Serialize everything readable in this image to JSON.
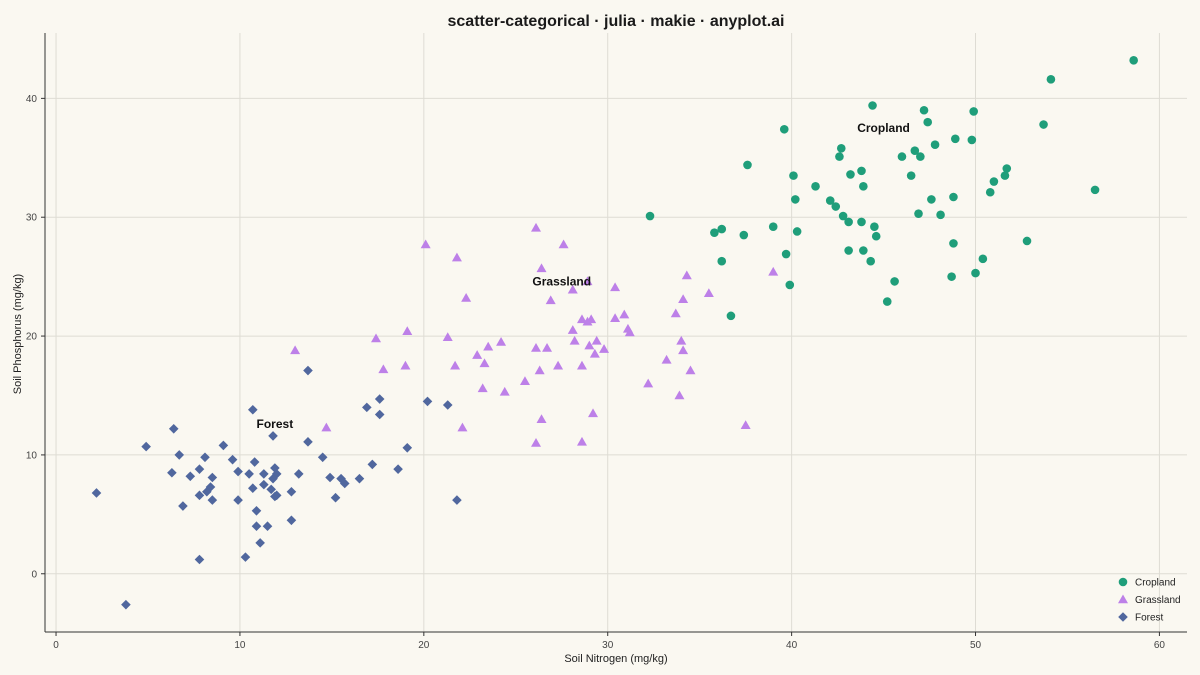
{
  "chart_data": {
    "type": "scatter",
    "title": "scatter-categorical · julia · makie · anyplot.ai",
    "xlabel": "Soil Nitrogen (mg/kg)",
    "ylabel": "Soil Phosphorus (mg/kg)",
    "xlim": [
      -0.6,
      61.5
    ],
    "ylim": [
      -4.9,
      45.5
    ],
    "xticks": [
      0,
      10,
      20,
      30,
      40,
      50,
      60
    ],
    "yticks": [
      0,
      10,
      20,
      30,
      40
    ],
    "grid": true,
    "legend_position": "bottom-right",
    "series": [
      {
        "name": "Cropland",
        "color": "#1F9E7A",
        "marker": "circle",
        "label": "Cropland",
        "label_at": [
          45,
          37.5
        ],
        "points": [
          [
            58.6,
            43.2
          ],
          [
            54.1,
            41.6
          ],
          [
            44.4,
            39.4
          ],
          [
            47.2,
            39.0
          ],
          [
            49.9,
            38.9
          ],
          [
            47.4,
            38.0
          ],
          [
            53.7,
            37.8
          ],
          [
            39.6,
            37.4
          ],
          [
            48.9,
            36.6
          ],
          [
            49.8,
            36.5
          ],
          [
            47.8,
            36.1
          ],
          [
            42.7,
            35.8
          ],
          [
            42.6,
            35.1
          ],
          [
            46.7,
            35.6
          ],
          [
            47.0,
            35.1
          ],
          [
            46.0,
            35.1
          ],
          [
            37.6,
            34.4
          ],
          [
            51.7,
            34.1
          ],
          [
            43.8,
            33.9
          ],
          [
            43.2,
            33.6
          ],
          [
            46.5,
            33.5
          ],
          [
            51.6,
            33.5
          ],
          [
            40.1,
            33.5
          ],
          [
            51.0,
            33.0
          ],
          [
            41.3,
            32.6
          ],
          [
            43.9,
            32.6
          ],
          [
            56.5,
            32.3
          ],
          [
            50.8,
            32.1
          ],
          [
            40.2,
            31.5
          ],
          [
            42.1,
            31.4
          ],
          [
            47.6,
            31.5
          ],
          [
            48.8,
            31.7
          ],
          [
            42.4,
            30.9
          ],
          [
            32.3,
            30.1
          ],
          [
            42.8,
            30.1
          ],
          [
            46.9,
            30.3
          ],
          [
            48.1,
            30.2
          ],
          [
            43.8,
            29.6
          ],
          [
            43.1,
            29.6
          ],
          [
            44.5,
            29.2
          ],
          [
            39.0,
            29.2
          ],
          [
            36.2,
            29.0
          ],
          [
            40.3,
            28.8
          ],
          [
            35.8,
            28.7
          ],
          [
            44.6,
            28.4
          ],
          [
            37.4,
            28.5
          ],
          [
            52.8,
            28.0
          ],
          [
            48.8,
            27.8
          ],
          [
            43.1,
            27.2
          ],
          [
            43.9,
            27.2
          ],
          [
            39.7,
            26.9
          ],
          [
            50.4,
            26.5
          ],
          [
            36.2,
            26.3
          ],
          [
            44.3,
            26.3
          ],
          [
            50.0,
            25.3
          ],
          [
            48.7,
            25.0
          ],
          [
            45.6,
            24.6
          ],
          [
            39.9,
            24.3
          ],
          [
            45.2,
            22.9
          ],
          [
            36.7,
            21.7
          ]
        ]
      },
      {
        "name": "Grassland",
        "color": "#BD80E8",
        "marker": "triangle",
        "label": "Grassland",
        "label_at": [
          27.5,
          24.6
        ],
        "points": [
          [
            26.1,
            29.1
          ],
          [
            20.1,
            27.7
          ],
          [
            27.6,
            27.7
          ],
          [
            21.8,
            26.6
          ],
          [
            26.4,
            25.7
          ],
          [
            34.3,
            25.1
          ],
          [
            39.0,
            25.4
          ],
          [
            28.9,
            24.6
          ],
          [
            30.4,
            24.1
          ],
          [
            28.1,
            23.9
          ],
          [
            35.5,
            23.6
          ],
          [
            22.3,
            23.2
          ],
          [
            26.9,
            23.0
          ],
          [
            34.1,
            23.1
          ],
          [
            33.7,
            21.9
          ],
          [
            30.9,
            21.8
          ],
          [
            28.6,
            21.4
          ],
          [
            29.1,
            21.4
          ],
          [
            30.4,
            21.5
          ],
          [
            28.9,
            21.2
          ],
          [
            31.1,
            20.6
          ],
          [
            31.2,
            20.3
          ],
          [
            19.1,
            20.4
          ],
          [
            28.1,
            20.5
          ],
          [
            21.3,
            19.9
          ],
          [
            17.4,
            19.8
          ],
          [
            29.4,
            19.6
          ],
          [
            28.2,
            19.6
          ],
          [
            24.2,
            19.5
          ],
          [
            34.0,
            19.6
          ],
          [
            23.5,
            19.1
          ],
          [
            13.0,
            18.8
          ],
          [
            29.0,
            19.2
          ],
          [
            26.1,
            19.0
          ],
          [
            26.7,
            19.0
          ],
          [
            29.8,
            18.9
          ],
          [
            34.1,
            18.8
          ],
          [
            22.9,
            18.4
          ],
          [
            29.3,
            18.5
          ],
          [
            33.2,
            18.0
          ],
          [
            23.3,
            17.7
          ],
          [
            28.6,
            17.5
          ],
          [
            27.3,
            17.5
          ],
          [
            19.0,
            17.5
          ],
          [
            21.7,
            17.5
          ],
          [
            17.8,
            17.2
          ],
          [
            26.3,
            17.1
          ],
          [
            34.5,
            17.1
          ],
          [
            25.5,
            16.2
          ],
          [
            32.2,
            16.0
          ],
          [
            23.2,
            15.6
          ],
          [
            24.4,
            15.3
          ],
          [
            33.9,
            15.0
          ],
          [
            29.2,
            13.5
          ],
          [
            26.4,
            13.0
          ],
          [
            22.1,
            12.3
          ],
          [
            14.7,
            12.3
          ],
          [
            37.5,
            12.5
          ],
          [
            26.1,
            11.0
          ],
          [
            28.6,
            11.1
          ]
        ]
      },
      {
        "name": "Forest",
        "color": "#50679E",
        "marker": "diamond",
        "label": "Forest",
        "label_at": [
          11.9,
          12.6
        ],
        "points": [
          [
            13.7,
            17.1
          ],
          [
            17.6,
            14.7
          ],
          [
            20.2,
            14.5
          ],
          [
            21.3,
            14.2
          ],
          [
            16.9,
            14.0
          ],
          [
            10.7,
            13.8
          ],
          [
            17.6,
            13.4
          ],
          [
            6.4,
            12.2
          ],
          [
            11.8,
            11.6
          ],
          [
            13.7,
            11.1
          ],
          [
            9.1,
            10.8
          ],
          [
            4.9,
            10.7
          ],
          [
            19.1,
            10.6
          ],
          [
            6.7,
            10.0
          ],
          [
            8.1,
            9.8
          ],
          [
            14.5,
            9.8
          ],
          [
            9.6,
            9.6
          ],
          [
            10.8,
            9.4
          ],
          [
            17.2,
            9.2
          ],
          [
            11.9,
            8.9
          ],
          [
            7.8,
            8.8
          ],
          [
            18.6,
            8.8
          ],
          [
            9.9,
            8.6
          ],
          [
            6.3,
            8.5
          ],
          [
            10.5,
            8.4
          ],
          [
            11.3,
            8.4
          ],
          [
            12.0,
            8.4
          ],
          [
            7.3,
            8.2
          ],
          [
            13.2,
            8.4
          ],
          [
            8.5,
            8.1
          ],
          [
            14.9,
            8.1
          ],
          [
            11.8,
            8.0
          ],
          [
            15.5,
            8.0
          ],
          [
            16.5,
            8.0
          ],
          [
            11.3,
            7.5
          ],
          [
            15.7,
            7.6
          ],
          [
            8.4,
            7.3
          ],
          [
            10.7,
            7.2
          ],
          [
            11.7,
            7.1
          ],
          [
            8.2,
            6.9
          ],
          [
            12.8,
            6.9
          ],
          [
            12.0,
            6.6
          ],
          [
            11.9,
            6.5
          ],
          [
            7.8,
            6.6
          ],
          [
            2.2,
            6.8
          ],
          [
            15.2,
            6.4
          ],
          [
            8.5,
            6.2
          ],
          [
            9.9,
            6.2
          ],
          [
            21.8,
            6.2
          ],
          [
            6.9,
            5.7
          ],
          [
            10.9,
            5.3
          ],
          [
            12.8,
            4.5
          ],
          [
            10.9,
            4.0
          ],
          [
            11.5,
            4.0
          ],
          [
            11.1,
            2.6
          ],
          [
            10.3,
            1.4
          ],
          [
            7.8,
            1.2
          ],
          [
            3.8,
            -2.6
          ]
        ]
      }
    ]
  }
}
